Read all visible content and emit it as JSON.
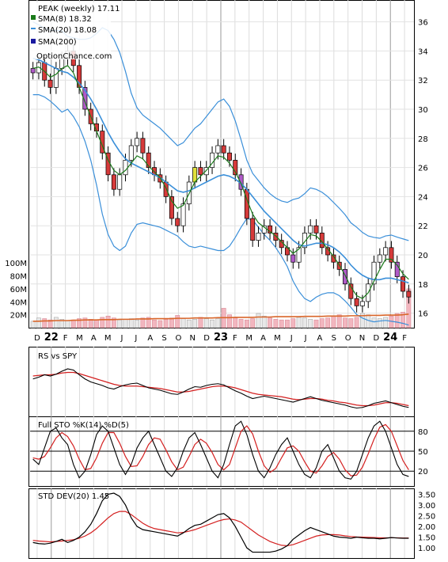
{
  "chart_data": [
    {
      "type": "candlestick",
      "title": "PEAK (weekly) 17.11",
      "watermark": "OptionChance.com",
      "legend": [
        {
          "label": "SMA(8) 18.32",
          "color": "#1a7a1a"
        },
        {
          "label": "SMA(20) 18.08",
          "color": "#3a8fd9"
        },
        {
          "label": "SMA(200)",
          "color": "#1a1aa0"
        }
      ],
      "price_ticks": [
        "36",
        "34",
        "32",
        "30",
        "28",
        "26",
        "24",
        "22",
        "20",
        "18",
        "16"
      ],
      "volume_ticks": [
        "100M",
        "80M",
        "60M",
        "40M",
        "20M"
      ],
      "x_months": [
        "D",
        "22",
        "F",
        "M",
        "A",
        "M",
        "J",
        "J",
        "A",
        "S",
        "O",
        "N",
        "D",
        "23",
        "F",
        "M",
        "A",
        "M",
        "J",
        "J",
        "A",
        "S",
        "O",
        "N",
        "D",
        "24",
        "F"
      ],
      "price_ylim": [
        15,
        37.5
      ],
      "volume_ylim": [
        0,
        110
      ],
      "close_approx": [
        32.5,
        33.2,
        32.0,
        31.5,
        32.8,
        33.5,
        34.0,
        33.0,
        31.5,
        30.0,
        29.0,
        28.5,
        27.0,
        25.5,
        24.5,
        25.5,
        26.5,
        27.5,
        28.0,
        27.0,
        26.0,
        25.5,
        25.0,
        24.0,
        22.5,
        22.0,
        23.5,
        25.0,
        26.0,
        25.5,
        26.0,
        27.0,
        27.5,
        27.0,
        26.5,
        25.5,
        24.5,
        22.5,
        21.0,
        21.5,
        22.0,
        21.5,
        21.0,
        20.5,
        20.0,
        19.5,
        20.5,
        21.5,
        22.0,
        21.5,
        20.5,
        20.0,
        19.5,
        19.0,
        18.0,
        17.0,
        16.5,
        16.8,
        18.0,
        19.5,
        20.0,
        20.5,
        19.5,
        18.5,
        17.5,
        17.11
      ],
      "sma8_approx": [
        32.8,
        32.9,
        32.6,
        32.2,
        32.4,
        32.8,
        33.0,
        32.5,
        31.5,
        30.5,
        29.5,
        28.5,
        27.5,
        26.5,
        25.8,
        25.5,
        25.8,
        26.3,
        26.8,
        26.6,
        26.1,
        25.7,
        25.3,
        24.6,
        23.7,
        23.2,
        23.4,
        24.2,
        25.0,
        25.4,
        25.8,
        26.3,
        26.8,
        26.7,
        26.3,
        25.7,
        24.9,
        23.8,
        22.8,
        22.2,
        21.9,
        21.6,
        21.3,
        20.9,
        20.5,
        20.1,
        20.4,
        20.9,
        21.4,
        21.3,
        20.9,
        20.4,
        19.9,
        19.3,
        18.6,
        17.8,
        17.2,
        17.0,
        17.4,
        18.2,
        19.0,
        19.7,
        19.7,
        19.3,
        18.7,
        18.32
      ],
      "sma20_approx": [
        33.5,
        33.4,
        33.2,
        33.0,
        32.8,
        32.6,
        32.5,
        32.2,
        31.8,
        31.3,
        30.7,
        30.0,
        29.2,
        28.4,
        27.7,
        27.1,
        26.6,
        26.3,
        26.1,
        25.9,
        25.7,
        25.5,
        25.3,
        25.0,
        24.7,
        24.4,
        24.3,
        24.4,
        24.6,
        24.8,
        25.0,
        25.2,
        25.4,
        25.5,
        25.4,
        25.2,
        24.9,
        24.5,
        24.0,
        23.5,
        23.0,
        22.6,
        22.2,
        21.8,
        21.4,
        21.0,
        20.7,
        20.6,
        20.7,
        20.8,
        20.8,
        20.7,
        20.5,
        20.2,
        19.8,
        19.3,
        18.9,
        18.6,
        18.4,
        18.3,
        18.3,
        18.4,
        18.4,
        18.3,
        18.2,
        18.08
      ],
      "volume_approx": [
        10,
        15,
        14,
        12,
        16,
        13,
        11,
        12,
        14,
        15,
        13,
        12,
        16,
        18,
        15,
        12,
        13,
        14,
        12,
        15,
        16,
        12,
        11,
        13,
        15,
        19,
        14,
        12,
        13,
        16,
        14,
        12,
        14,
        30,
        20,
        15,
        13,
        12,
        14,
        22,
        18,
        15,
        13,
        12,
        12,
        14,
        16,
        15,
        13,
        12,
        14,
        15,
        18,
        20,
        15,
        14,
        16,
        22,
        20,
        15,
        14,
        16,
        18,
        22,
        24,
        60
      ],
      "volume_sma_approx": [
        10,
        10,
        10.5,
        10.5,
        11,
        11,
        11,
        11.5,
        11.5,
        12,
        12,
        12,
        12.5,
        12.5,
        12.5,
        13,
        13,
        13,
        13.5,
        13.5,
        13.5,
        14,
        14,
        14,
        14,
        14.5,
        14.5,
        14.5,
        15,
        15,
        15,
        15,
        15.5,
        15.5,
        15.5,
        16,
        16,
        16,
        16,
        16.5,
        16.5,
        16.5,
        17,
        17,
        17,
        17,
        17,
        17.5,
        17.5,
        17.5,
        17.5,
        18,
        18,
        18,
        18,
        18.5,
        18.5,
        18.5,
        19,
        19,
        19,
        19.5,
        19.5,
        19.5,
        20,
        21
      ]
    },
    {
      "type": "line",
      "title": "RS vs SPY",
      "series_black_approx": [
        0.55,
        0.58,
        0.62,
        0.6,
        0.63,
        0.68,
        0.72,
        0.7,
        0.62,
        0.55,
        0.5,
        0.47,
        0.44,
        0.4,
        0.38,
        0.42,
        0.45,
        0.47,
        0.48,
        0.44,
        0.4,
        0.38,
        0.36,
        0.33,
        0.3,
        0.29,
        0.33,
        0.38,
        0.42,
        0.41,
        0.44,
        0.46,
        0.47,
        0.45,
        0.4,
        0.35,
        0.31,
        0.26,
        0.22,
        0.24,
        0.26,
        0.24,
        0.22,
        0.2,
        0.18,
        0.16,
        0.19,
        0.22,
        0.25,
        0.22,
        0.19,
        0.17,
        0.15,
        0.13,
        0.11,
        0.08,
        0.06,
        0.07,
        0.1,
        0.14,
        0.16,
        0.18,
        0.15,
        0.12,
        0.09,
        0.07
      ],
      "series_red_approx": [
        0.6,
        0.61,
        0.62,
        0.62,
        0.63,
        0.65,
        0.66,
        0.66,
        0.64,
        0.61,
        0.58,
        0.55,
        0.52,
        0.49,
        0.46,
        0.44,
        0.43,
        0.43,
        0.43,
        0.42,
        0.41,
        0.4,
        0.39,
        0.37,
        0.35,
        0.33,
        0.33,
        0.34,
        0.36,
        0.38,
        0.4,
        0.42,
        0.43,
        0.43,
        0.42,
        0.4,
        0.37,
        0.34,
        0.31,
        0.29,
        0.28,
        0.27,
        0.26,
        0.25,
        0.23,
        0.21,
        0.2,
        0.21,
        0.22,
        0.22,
        0.21,
        0.19,
        0.18,
        0.16,
        0.15,
        0.13,
        0.11,
        0.1,
        0.1,
        0.11,
        0.13,
        0.15,
        0.15,
        0.14,
        0.12,
        0.1
      ]
    },
    {
      "type": "line",
      "title": "Full STO %K(14) %D(5)",
      "y_ticks": [
        "80",
        "50",
        "20"
      ],
      "ylim": [
        0,
        100
      ],
      "k_approx": [
        38,
        30,
        55,
        80,
        85,
        70,
        60,
        30,
        10,
        20,
        45,
        75,
        88,
        80,
        55,
        30,
        15,
        30,
        55,
        70,
        80,
        60,
        40,
        20,
        12,
        25,
        50,
        70,
        78,
        60,
        40,
        20,
        10,
        30,
        60,
        88,
        95,
        75,
        45,
        20,
        10,
        25,
        45,
        60,
        70,
        50,
        30,
        15,
        10,
        25,
        50,
        60,
        40,
        20,
        10,
        8,
        20,
        45,
        70,
        88,
        95,
        80,
        55,
        30,
        15,
        12
      ],
      "d_approx": [
        40,
        38,
        42,
        55,
        70,
        78,
        72,
        58,
        38,
        22,
        24,
        40,
        62,
        78,
        78,
        62,
        42,
        27,
        28,
        42,
        60,
        70,
        68,
        52,
        34,
        22,
        26,
        42,
        60,
        68,
        62,
        48,
        30,
        22,
        30,
        55,
        80,
        88,
        76,
        50,
        28,
        18,
        24,
        40,
        55,
        58,
        50,
        34,
        20,
        17,
        28,
        42,
        48,
        38,
        22,
        13,
        14,
        26,
        46,
        68,
        86,
        90,
        80,
        58,
        36,
        22
      ]
    },
    {
      "type": "line",
      "title": "STD DEV(20) 1.45",
      "y_ticks": [
        "3.50",
        "3.00",
        "2.50",
        "2.00",
        "1.50",
        "1.00"
      ],
      "ylim": [
        0.6,
        3.7
      ],
      "series_black_approx": [
        1.25,
        1.2,
        1.18,
        1.22,
        1.3,
        1.4,
        1.25,
        1.35,
        1.5,
        1.75,
        2.1,
        2.6,
        3.2,
        3.5,
        3.55,
        3.4,
        3.0,
        2.4,
        2.0,
        1.85,
        1.8,
        1.75,
        1.7,
        1.65,
        1.6,
        1.55,
        1.7,
        1.9,
        2.05,
        2.1,
        2.25,
        2.4,
        2.55,
        2.6,
        2.4,
        2.0,
        1.5,
        1.0,
        0.8,
        0.8,
        0.8,
        0.8,
        0.85,
        0.95,
        1.1,
        1.4,
        1.6,
        1.8,
        1.95,
        1.85,
        1.75,
        1.65,
        1.55,
        1.5,
        1.48,
        1.45,
        1.5,
        1.47,
        1.45,
        1.45,
        1.42,
        1.45,
        1.48,
        1.46,
        1.45,
        1.45
      ],
      "series_red_approx": [
        1.35,
        1.32,
        1.3,
        1.28,
        1.3,
        1.32,
        1.35,
        1.38,
        1.45,
        1.55,
        1.7,
        1.9,
        2.15,
        2.4,
        2.6,
        2.7,
        2.7,
        2.55,
        2.35,
        2.15,
        2.0,
        1.9,
        1.85,
        1.8,
        1.75,
        1.7,
        1.72,
        1.78,
        1.85,
        1.95,
        2.05,
        2.15,
        2.25,
        2.32,
        2.35,
        2.3,
        2.2,
        2.0,
        1.8,
        1.6,
        1.45,
        1.3,
        1.2,
        1.12,
        1.1,
        1.15,
        1.25,
        1.35,
        1.45,
        1.55,
        1.6,
        1.62,
        1.62,
        1.6,
        1.56,
        1.53,
        1.51,
        1.5,
        1.49,
        1.48,
        1.47,
        1.47,
        1.47,
        1.47,
        1.46,
        1.46
      ]
    }
  ]
}
